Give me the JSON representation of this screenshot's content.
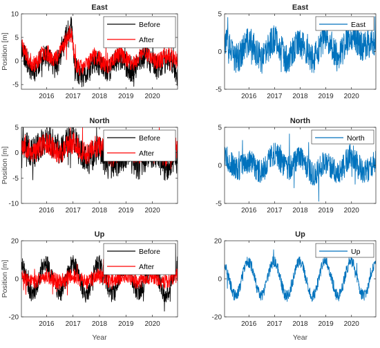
{
  "colors": {
    "before": "#000000",
    "after": "#ff0000",
    "single": "#0072bd",
    "axis": "#262626"
  },
  "chart_data": [
    {
      "type": "line",
      "title": "East",
      "xlabel": "",
      "ylabel": "Position [m]",
      "xlim": [
        2015.05,
        2020.95
      ],
      "ylim": [
        -6,
        10
      ],
      "xticks": [
        2016,
        2017,
        2018,
        2019,
        2020
      ],
      "xtick_labels": [
        "2016",
        "2017",
        "2018",
        "2019",
        "2020"
      ],
      "yticks": [
        -5,
        0,
        5,
        10
      ],
      "ytick_labels": [
        "-5",
        "0",
        "5",
        "10"
      ],
      "legend": "top-right",
      "series": [
        {
          "name": "Before",
          "color": "#000000",
          "seed": 11,
          "components": [
            [
              2015.05,
              1.5
            ],
            [
              2015.6,
              -1
            ],
            [
              2016.3,
              0
            ],
            [
              2016.95,
              6
            ],
            [
              2017.05,
              -1.5
            ],
            [
              2017.6,
              -2.5
            ],
            [
              2018.2,
              -0.5
            ],
            [
              2019.0,
              -1
            ],
            [
              2019.6,
              -0.5
            ],
            [
              2020.2,
              0
            ],
            [
              2020.6,
              -1
            ],
            [
              2020.95,
              -2.5
            ]
          ],
          "amp": 1.4,
          "period": 0.95,
          "spike": 2.5
        },
        {
          "name": "After",
          "color": "#ff0000",
          "seed": 23,
          "components": [
            [
              2015.05,
              2.5
            ],
            [
              2015.6,
              0
            ],
            [
              2016.3,
              1.5
            ],
            [
              2016.95,
              5
            ],
            [
              2017.05,
              -0.5
            ],
            [
              2018.0,
              0
            ],
            [
              2019.0,
              0.5
            ],
            [
              2020.2,
              1
            ],
            [
              2020.95,
              0
            ]
          ],
          "amp": 1.1,
          "period": 0.95,
          "spike": 1.8
        }
      ]
    },
    {
      "type": "line",
      "title": "East",
      "xlabel": "",
      "ylabel": "",
      "xlim": [
        2015.05,
        2020.95
      ],
      "ylim": [
        -5,
        5
      ],
      "xticks": [
        2016,
        2017,
        2018,
        2019,
        2020
      ],
      "xtick_labels": [
        "2016",
        "2017",
        "2018",
        "2019",
        "2020"
      ],
      "yticks": [
        -5,
        0,
        5
      ],
      "ytick_labels": [
        "-5",
        "0",
        "5"
      ],
      "legend": "top-right",
      "series": [
        {
          "name": "East",
          "color": "#0072bd",
          "seed": 37,
          "components": [
            [
              2015.05,
              0.5
            ],
            [
              2016.0,
              0
            ],
            [
              2017.0,
              0.5
            ],
            [
              2018.0,
              0
            ],
            [
              2019.0,
              0.5
            ],
            [
              2020.0,
              1
            ],
            [
              2020.6,
              2
            ],
            [
              2020.95,
              0
            ]
          ],
          "amp": 1.2,
          "period": 1.0,
          "spike": 2.0
        }
      ]
    },
    {
      "type": "line",
      "title": "North",
      "xlabel": "",
      "ylabel": "Position [m]",
      "xlim": [
        2015.05,
        2020.95
      ],
      "ylim": [
        -10,
        5
      ],
      "xticks": [
        2016,
        2017,
        2018,
        2019,
        2020
      ],
      "xtick_labels": [
        "2016",
        "2017",
        "2018",
        "2019",
        "2020"
      ],
      "yticks": [
        -10,
        -5,
        0,
        5
      ],
      "ytick_labels": [
        "-10",
        "-5",
        "0",
        "5"
      ],
      "legend": "top-right",
      "series": [
        {
          "name": "Before",
          "color": "#000000",
          "seed": 41,
          "components": [
            [
              2015.05,
              1
            ],
            [
              2016.0,
              1.5
            ],
            [
              2016.9,
              2
            ],
            [
              2017.3,
              0
            ],
            [
              2018.0,
              -1
            ],
            [
              2019.0,
              -1.5
            ],
            [
              2020.0,
              -1
            ],
            [
              2020.95,
              -2
            ]
          ],
          "amp": 1.0,
          "period": 1.0,
          "spike": 3.0
        },
        {
          "name": "After",
          "color": "#ff0000",
          "seed": 53,
          "components": [
            [
              2015.05,
              1
            ],
            [
              2016.0,
              1
            ],
            [
              2017.0,
              1
            ],
            [
              2018.0,
              0.5
            ],
            [
              2019.0,
              0
            ],
            [
              2020.0,
              0.5
            ],
            [
              2020.95,
              0
            ]
          ],
          "amp": 0.9,
          "period": 1.0,
          "spike": 2.2
        }
      ]
    },
    {
      "type": "line",
      "title": "North",
      "xlabel": "",
      "ylabel": "",
      "xlim": [
        2015.05,
        2020.95
      ],
      "ylim": [
        -5,
        5
      ],
      "xticks": [
        2016,
        2017,
        2018,
        2019,
        2020
      ],
      "xtick_labels": [
        "2016",
        "2017",
        "2018",
        "2019",
        "2020"
      ],
      "yticks": [
        -5,
        0,
        5
      ],
      "ytick_labels": [
        "-5",
        "0",
        "5"
      ],
      "legend": "top-right",
      "series": [
        {
          "name": "North",
          "color": "#0072bd",
          "seed": 67,
          "components": [
            [
              2015.05,
              1
            ],
            [
              2016.0,
              -0.5
            ],
            [
              2017.0,
              0.8
            ],
            [
              2018.0,
              0
            ],
            [
              2019.0,
              -0.5
            ],
            [
              2020.0,
              0.5
            ],
            [
              2020.95,
              -0.5
            ]
          ],
          "amp": 0.8,
          "period": 1.0,
          "spike": 1.6
        }
      ]
    },
    {
      "type": "line",
      "title": "Up",
      "xlabel": "Year",
      "ylabel": "Position [m]",
      "xlim": [
        2015.05,
        2020.95
      ],
      "ylim": [
        -20,
        20
      ],
      "xticks": [
        2016,
        2017,
        2018,
        2019,
        2020
      ],
      "xtick_labels": [
        "2016",
        "2017",
        "2018",
        "2019",
        "2020"
      ],
      "yticks": [
        -20,
        0,
        20
      ],
      "ytick_labels": [
        "-20",
        "0",
        "20"
      ],
      "legend": "top-right",
      "series": [
        {
          "name": "Before",
          "color": "#000000",
          "seed": 71,
          "components": [
            [
              2015.05,
              0
            ],
            [
              2020.95,
              0
            ]
          ],
          "amp": 7.5,
          "period": 1.0,
          "spike": 5.0
        },
        {
          "name": "After",
          "color": "#ff0000",
          "seed": 83,
          "components": [
            [
              2015.05,
              0
            ],
            [
              2020.95,
              0
            ]
          ],
          "amp": 1.5,
          "period": 1.0,
          "spike": 4.0
        }
      ]
    },
    {
      "type": "line",
      "title": "Up",
      "xlabel": "Year",
      "ylabel": "",
      "xlim": [
        2015.05,
        2020.95
      ],
      "ylim": [
        -20,
        20
      ],
      "xticks": [
        2016,
        2017,
        2018,
        2019,
        2020
      ],
      "xtick_labels": [
        "2016",
        "2017",
        "2018",
        "2019",
        "2020"
      ],
      "yticks": [
        -20,
        0,
        20
      ],
      "ytick_labels": [
        "-20",
        "0",
        "20"
      ],
      "legend": "top-right",
      "series": [
        {
          "name": "Up",
          "color": "#0072bd",
          "seed": 97,
          "components": [
            [
              2015.05,
              0
            ],
            [
              2020.95,
              0
            ]
          ],
          "amp": 9.0,
          "period": 1.0,
          "spike": 3.0
        }
      ]
    }
  ]
}
